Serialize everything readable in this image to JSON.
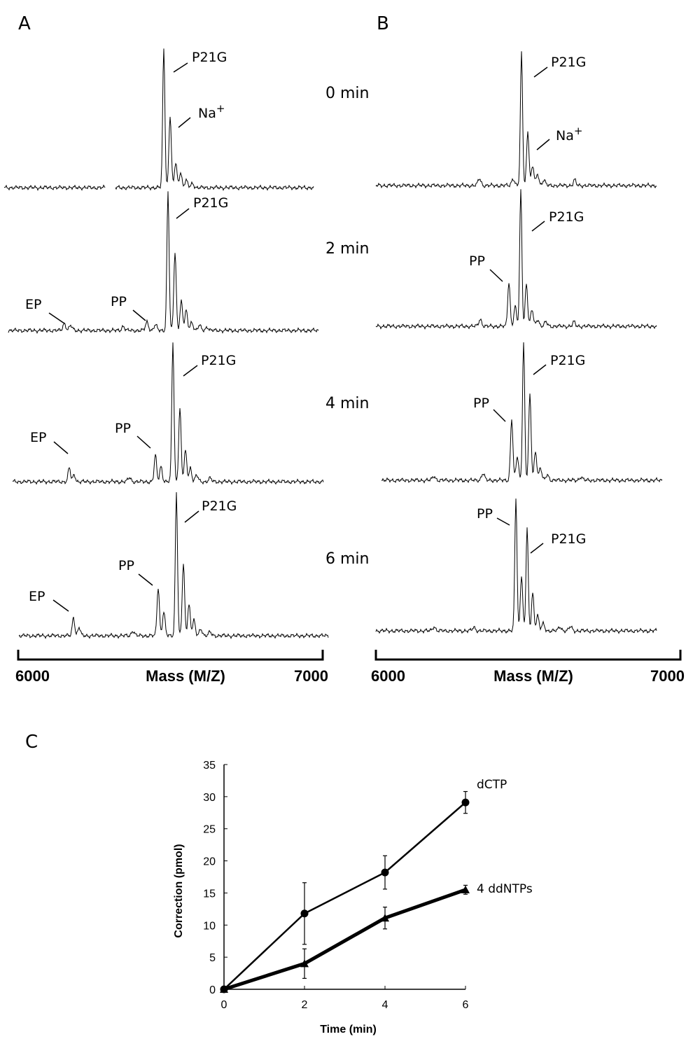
{
  "panels": {
    "A": {
      "letter": "A",
      "xaxis": {
        "label": "Mass (M/Z)",
        "min_label": "6000",
        "max_label": "7000"
      },
      "traces": [
        {
          "time": "0 min",
          "labels": [
            "P21G",
            "Na+"
          ]
        },
        {
          "time": "2 min",
          "labels": [
            "EP",
            "PP",
            "P21G"
          ]
        },
        {
          "time": "4 min",
          "labels": [
            "EP",
            "PP",
            "P21G"
          ]
        },
        {
          "time": "6 min",
          "labels": [
            "EP",
            "PP",
            "P21G"
          ]
        }
      ]
    },
    "B": {
      "letter": "B",
      "xaxis": {
        "label": "Mass (M/Z)",
        "min_label": "6000",
        "max_label": "7000"
      },
      "traces": [
        {
          "labels": [
            "P21G",
            "Na+"
          ]
        },
        {
          "labels": [
            "PP",
            "P21G"
          ]
        },
        {
          "labels": [
            "PP",
            "P21G"
          ]
        },
        {
          "labels": [
            "PP",
            "P21G"
          ]
        }
      ]
    },
    "C": {
      "letter": "C"
    }
  },
  "chart_data": {
    "type": "line",
    "title": "",
    "xlabel": "Time (min)",
    "ylabel": "Correction (pmol)",
    "xlim": [
      0,
      6
    ],
    "ylim": [
      0,
      35
    ],
    "x_ticks": [
      "0",
      "2",
      "4",
      "6"
    ],
    "y_ticks": [
      "0",
      "5",
      "10",
      "15",
      "20",
      "25",
      "30",
      "35"
    ],
    "x": [
      0,
      2,
      4,
      6
    ],
    "series": [
      {
        "name": "dCTP",
        "marker": "circle",
        "color": "#000000",
        "values": [
          0,
          11.8,
          18.2,
          29.1
        ],
        "errors": [
          0,
          4.8,
          2.6,
          1.7
        ]
      },
      {
        "name": "4 ddNTPs",
        "marker": "triangle",
        "color": "#000000",
        "values": [
          0,
          4.0,
          11.1,
          15.5
        ],
        "errors": [
          0,
          2.3,
          1.7,
          0.7
        ]
      }
    ]
  }
}
